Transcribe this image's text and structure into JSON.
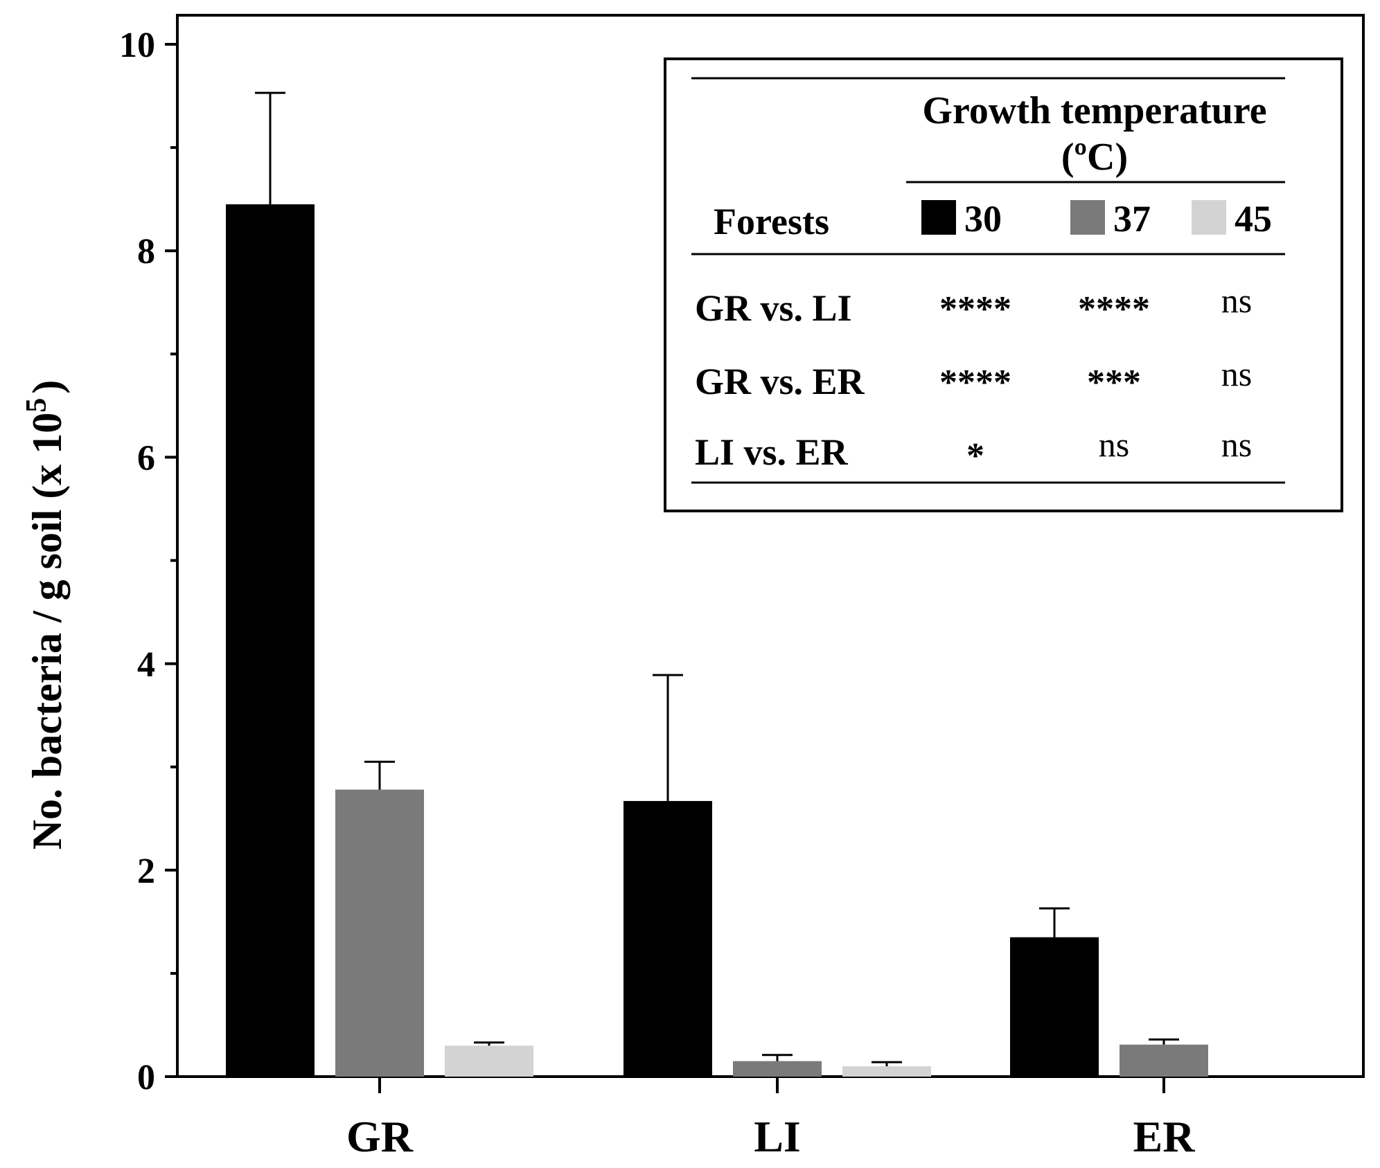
{
  "chart_data": {
    "type": "bar",
    "title": "",
    "xlabel": "",
    "ylabel": "No. bacteria / g soil (x 10",
    "ylabel_exponent": "5",
    "ylabel_close": ")",
    "ylim": [
      0,
      10
    ],
    "yticks": [
      0,
      2,
      4,
      6,
      8,
      10
    ],
    "grid": false,
    "categories": [
      "GR",
      "LI",
      "ER"
    ],
    "series": [
      {
        "name": "30",
        "color": "#000000",
        "values": [
          8.45,
          2.67,
          1.35
        ],
        "errors": [
          1.08,
          1.22,
          0.28
        ]
      },
      {
        "name": "37",
        "color": "#7a7a7a",
        "values": [
          2.78,
          0.15,
          0.31
        ],
        "errors": [
          0.27,
          0.06,
          0.05
        ]
      },
      {
        "name": "45",
        "color": "#d3d3d3",
        "values": [
          0.3,
          0.1,
          0.0
        ],
        "errors": [
          0.03,
          0.04,
          0.0
        ]
      }
    ],
    "legend": {
      "placement": "top-right",
      "title_line1": "Growth temperature",
      "title_line2": "(ºC)",
      "row_header": "Forests",
      "comparisons": [
        {
          "label": "GR vs. LI",
          "values": [
            "****",
            "****",
            "ns"
          ]
        },
        {
          "label": "GR vs. ER",
          "values": [
            "****",
            "***",
            "ns"
          ]
        },
        {
          "label": "LI vs. ER",
          "values": [
            "*",
            "ns",
            "ns"
          ]
        }
      ]
    }
  }
}
